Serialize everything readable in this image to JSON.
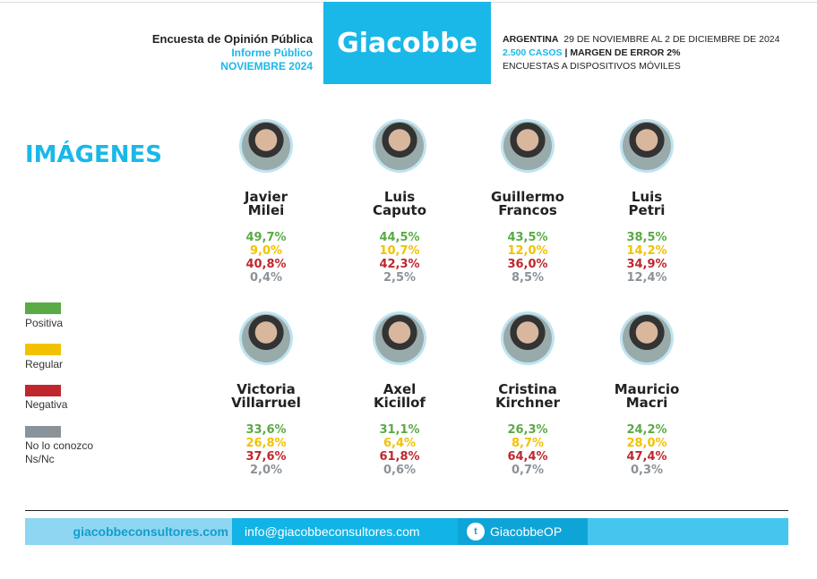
{
  "header": {
    "survey": "Encuesta de Opinión Pública",
    "report": "Informe Público",
    "month": "NOVIEMBRE 2024",
    "logo": "Giacobbe",
    "country": "ARGENTINA",
    "dates": "29 DE NOVIEMBRE AL 2 DE DICIEMBRE DE 2024",
    "cases": "2.500 CASOS",
    "margin": "| MARGEN DE ERROR 2%",
    "method": "ENCUESTAS A DISPOSITIVOS MÓVILES"
  },
  "title": "IMÁGENES",
  "colors": {
    "positiva": "#5aaa46",
    "regular": "#f2c200",
    "negativa": "#c0272d",
    "nsnc": "#8a9399",
    "accent": "#1ab8e8"
  },
  "legend": [
    "Positiva",
    "Regular",
    "Negativa",
    "No lo conozco Ns/Nc"
  ],
  "candidates": [
    {
      "first": "Javier",
      "last": "Milei",
      "pos": "49,7%",
      "reg": "9,0%",
      "neg": "40,8%",
      "ns": "0,4%"
    },
    {
      "first": "Luis",
      "last": "Caputo",
      "pos": "44,5%",
      "reg": "10,7%",
      "neg": "42,3%",
      "ns": "2,5%"
    },
    {
      "first": "Guillermo",
      "last": "Francos",
      "pos": "43,5%",
      "reg": "12,0%",
      "neg": "36,0%",
      "ns": "8,5%"
    },
    {
      "first": "Luis",
      "last": "Petri",
      "pos": "38,5%",
      "reg": "14,2%",
      "neg": "34,9%",
      "ns": "12,4%"
    },
    {
      "first": "Victoria",
      "last": "Villarruel",
      "pos": "33,6%",
      "reg": "26,8%",
      "neg": "37,6%",
      "ns": "2,0%"
    },
    {
      "first": "Axel",
      "last": "Kicillof",
      "pos": "31,1%",
      "reg": "6,4%",
      "neg": "61,8%",
      "ns": "0,6%"
    },
    {
      "first": "Cristina",
      "last": "Kirchner",
      "pos": "26,3%",
      "reg": "8,7%",
      "neg": "64,4%",
      "ns": "0,7%"
    },
    {
      "first": "Mauricio",
      "last": "Macri",
      "pos": "24,2%",
      "reg": "28,0%",
      "neg": "47,4%",
      "ns": "0,3%"
    }
  ],
  "footer": {
    "website": "giacobbeconsultores.com",
    "email": "info@giacobbeconsultores.com",
    "twitter": "GiacobbeOP",
    "twitter_icon": "twitter-bird-icon"
  }
}
